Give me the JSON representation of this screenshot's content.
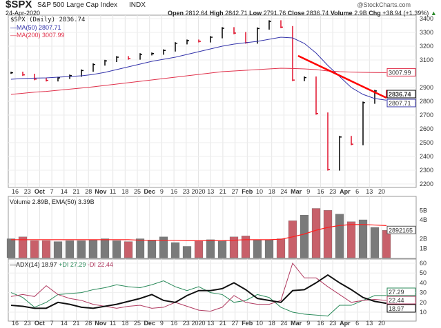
{
  "header": {
    "symbol": "$SPX",
    "name": "S&P 500 Large Cap Index",
    "exchange": "INDX",
    "date": "24-Apr-2020",
    "brand": "@StockCharts.com",
    "open_label": "Open",
    "open": "2812.64",
    "high_label": "High",
    "high": "2842.71",
    "low_label": "Low",
    "low": "2791.76",
    "close_label": "Close",
    "close": "2836.74",
    "volume_label": "Volume",
    "volume": "2.9B",
    "chg_label": "Chg",
    "chg": "+38.94 (+1.39%)"
  },
  "legend": {
    "price": "$SPX (Daily) 2836.74",
    "ma50": "MA(50) 2807.71",
    "ma200": "MA(200) 3007.99",
    "volume": "Volume 2.89B, EMA(50) 3.39B",
    "adx": "ADX(14) 18.97",
    "pdi": "+DI 27.29",
    "mdi": "-DI 22.44"
  },
  "badges": {
    "close": "2836.74",
    "ma50": "2807.71",
    "ma200": "3007.99",
    "volume": "2892165",
    "adx": "18.97",
    "pdi": "27.29",
    "mdi": "22.44"
  },
  "colors": {
    "up": "#000000",
    "down": "#e0102a",
    "ma50": "#3333aa",
    "ma200": "#e0304a",
    "vol_up": "#7a7a7a",
    "vol_down": "#c8606a",
    "ema": "#ff2020",
    "adx": "#111111",
    "pdi": "#2a8a5a",
    "mdi": "#b03a60",
    "trend": "#ff0000"
  },
  "chart_data": [
    {
      "type": "bar",
      "title": "$SPX (Daily)",
      "ylim": [
        2200,
        3400
      ],
      "yticks": [
        3400,
        3300,
        3200,
        3100,
        2900,
        2800,
        2700,
        2600,
        2500,
        2400,
        2300,
        2200
      ],
      "xticks": [
        "16",
        "23",
        "Oct",
        "7",
        "14",
        "21",
        "28",
        "Nov",
        "11",
        "18",
        "25",
        "Dec",
        "9",
        "16",
        "23",
        "2020",
        "13",
        "21",
        "27",
        "Feb",
        "10",
        "18",
        "24",
        "Mar",
        "9",
        "16",
        "23",
        "Apr",
        "6",
        "13",
        "20"
      ],
      "close": [
        3007,
        2992,
        2961,
        2952,
        2970,
        2986,
        3023,
        3067,
        3093,
        3120,
        3110,
        3141,
        3146,
        3169,
        3221,
        3240,
        3235,
        3265,
        3330,
        3295,
        3226,
        3328,
        3380,
        3338,
        2954,
        2972,
        2711,
        2305,
        2541,
        2489,
        2790,
        2875,
        2837
      ],
      "ma50": [
        2960,
        2965,
        2968,
        2970,
        2975,
        2980,
        2985,
        2995,
        3010,
        3030,
        3050,
        3070,
        3090,
        3105,
        3120,
        3140,
        3160,
        3180,
        3200,
        3215,
        3225,
        3235,
        3250,
        3265,
        3260,
        3220,
        3150,
        3060,
        2980,
        2900,
        2850,
        2820,
        2808
      ],
      "ma200": [
        2850,
        2858,
        2866,
        2872,
        2880,
        2888,
        2896,
        2905,
        2915,
        2925,
        2935,
        2945,
        2955,
        2965,
        2975,
        2985,
        2995,
        3005,
        3015,
        3020,
        3025,
        3030,
        3035,
        3040,
        3038,
        3035,
        3030,
        3020,
        3015,
        3012,
        3010,
        3009,
        3008
      ]
    },
    {
      "type": "bar",
      "title": "Volume",
      "ylim": [
        0,
        5.5
      ],
      "yticks": [
        "1B",
        "2B",
        "4B",
        "5B"
      ],
      "values": [
        2.0,
        2.2,
        1.8,
        1.8,
        1.7,
        1.8,
        1.8,
        1.9,
        2.0,
        1.8,
        1.7,
        2.0,
        1.8,
        2.2,
        1.6,
        1.2,
        1.8,
        1.9,
        1.8,
        2.2,
        2.3,
        1.9,
        1.9,
        2.0,
        3.9,
        4.5,
        5.2,
        5.0,
        4.6,
        3.8,
        4.0,
        3.2,
        2.89
      ],
      "ema50": [
        1.9,
        1.9,
        1.9,
        1.9,
        1.9,
        1.9,
        1.9,
        1.9,
        1.9,
        1.9,
        1.9,
        1.85,
        1.85,
        1.85,
        1.85,
        1.8,
        1.8,
        1.8,
        1.8,
        1.85,
        1.9,
        1.9,
        1.9,
        1.95,
        2.2,
        2.5,
        2.9,
        3.2,
        3.4,
        3.5,
        3.5,
        3.45,
        3.39
      ]
    },
    {
      "type": "line",
      "title": "ADX(14)",
      "ylim": [
        5,
        62
      ],
      "yticks": [
        10,
        20,
        30,
        40,
        50,
        60
      ],
      "series": [
        {
          "name": "ADX(14)",
          "values": [
            17,
            16,
            14,
            14,
            20,
            18,
            15,
            14,
            16,
            18,
            21,
            24,
            28,
            22,
            20,
            27,
            32,
            32,
            34,
            40,
            33,
            24,
            22,
            20,
            32,
            33,
            40,
            48,
            40,
            33,
            25,
            21,
            19
          ]
        },
        {
          "name": "+DI",
          "values": [
            30,
            25,
            15,
            20,
            28,
            29,
            30,
            33,
            35,
            38,
            36,
            35,
            38,
            42,
            36,
            32,
            36,
            30,
            28,
            20,
            22,
            28,
            25,
            15,
            10,
            8,
            7,
            6,
            17,
            17,
            22,
            27,
            27
          ]
        },
        {
          "name": "-DI",
          "values": [
            26,
            28,
            26,
            37,
            28,
            24,
            22,
            18,
            16,
            14,
            16,
            17,
            14,
            15,
            20,
            16,
            12,
            11,
            15,
            27,
            20,
            18,
            18,
            22,
            60,
            45,
            45,
            36,
            28,
            20,
            22,
            23,
            22
          ]
        }
      ]
    }
  ]
}
